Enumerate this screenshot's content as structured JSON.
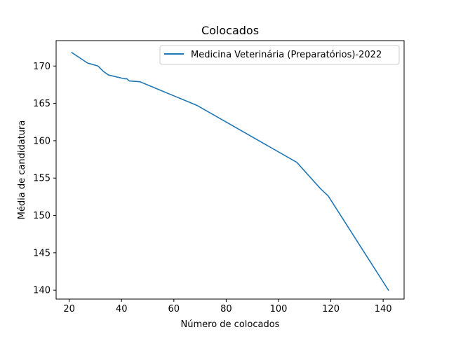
{
  "chart_data": {
    "type": "line",
    "title": "Colocados",
    "xlabel": "Número de colocados",
    "ylabel": "Média de candidatura",
    "xlim": [
      15,
      148
    ],
    "ylim": [
      138.8,
      173.4
    ],
    "xticks": [
      20,
      40,
      60,
      80,
      100,
      120,
      140
    ],
    "yticks": [
      140,
      145,
      150,
      155,
      160,
      165,
      170
    ],
    "grid": false,
    "legend": "top-right",
    "series": [
      {
        "name": "Medicina Veterinária (Preparatórios)-2022",
        "color": "#1f77b4",
        "x": [
          21,
          27,
          31,
          33,
          35,
          41,
          42,
          43,
          47,
          69,
          107,
          116,
          119,
          142
        ],
        "y": [
          171.8,
          170.4,
          170.0,
          169.3,
          168.8,
          168.3,
          168.3,
          168.0,
          167.9,
          164.7,
          157.1,
          153.6,
          152.6,
          140.0
        ]
      }
    ]
  }
}
